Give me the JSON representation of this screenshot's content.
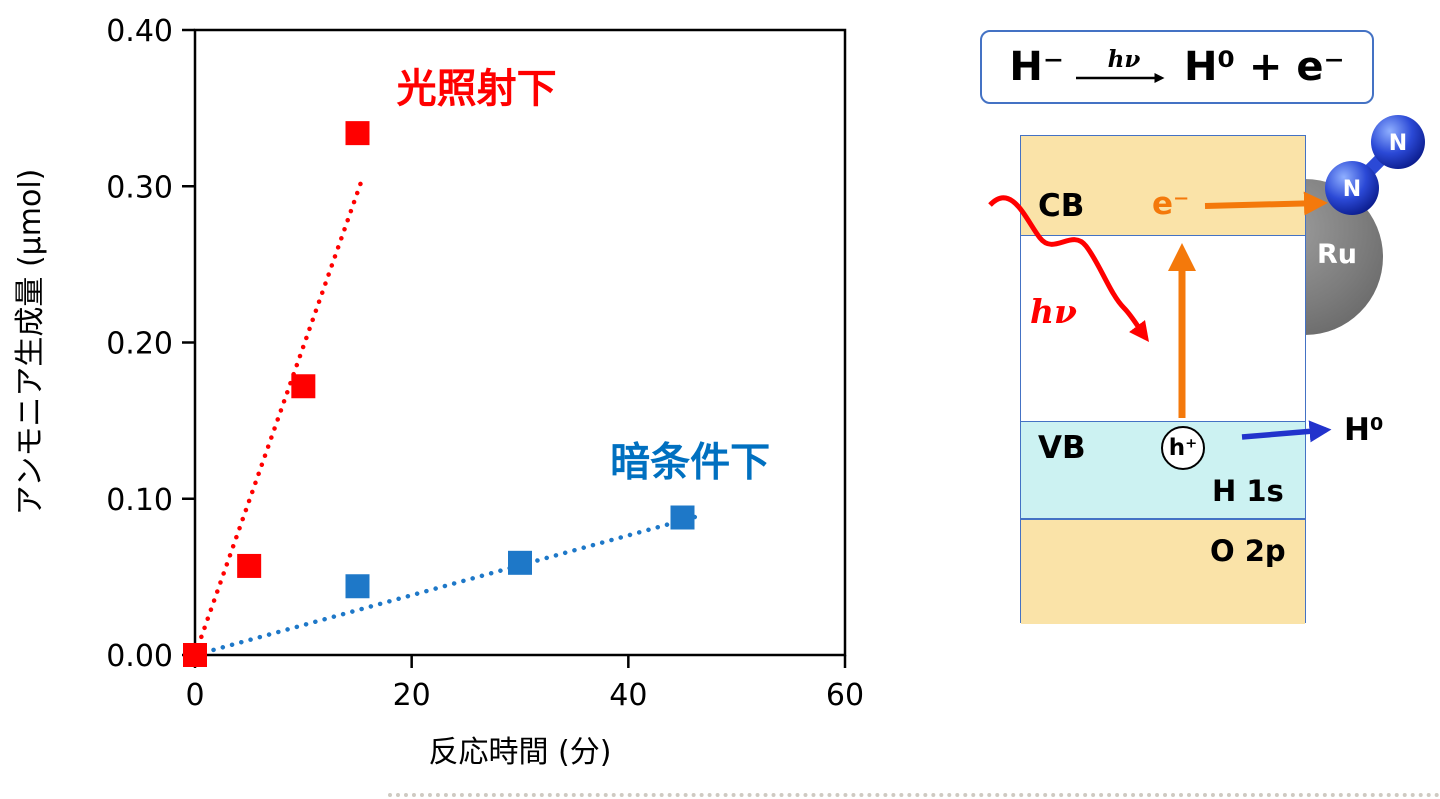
{
  "figure": {
    "background": "#FFFFFF"
  },
  "chart_data": {
    "type": "scatter",
    "title": "",
    "xlabel": "反応時間 (分)",
    "ylabel": "アンモニア生成量 (μmol)",
    "xlim": [
      0,
      60
    ],
    "ylim": [
      0,
      0.4
    ],
    "xticks": [
      "0",
      "20",
      "40",
      "60"
    ],
    "yticks": [
      "0.00",
      "0.10",
      "0.20",
      "0.30",
      "0.40"
    ],
    "grid": false,
    "legend_position": "inline-annotations",
    "series": [
      {
        "name": "暗条件下",
        "color": "#1E78C8",
        "marker": "square",
        "line_style": "dotted",
        "x": [
          0,
          15,
          30,
          45
        ],
        "y": [
          0,
          0.044,
          0.059,
          0.088
        ],
        "trend": {
          "x": [
            0,
            46.5
          ],
          "y": [
            0,
            0.089
          ]
        }
      },
      {
        "name": "光照射下",
        "color": "#FF0000",
        "marker": "square",
        "line_style": "dotted",
        "x": [
          0,
          5,
          10,
          15
        ],
        "y": [
          0,
          0.057,
          0.172,
          0.334
        ],
        "trend": {
          "x": [
            0,
            15.5
          ],
          "y": [
            0,
            0.306
          ]
        }
      }
    ],
    "annotations": [
      {
        "text": "光照射下",
        "x": 26,
        "y": 0.363,
        "color": "#FF0000"
      },
      {
        "text": "暗条件下",
        "x": 45.7,
        "y": 0.124,
        "color": "#0070C0"
      }
    ]
  },
  "equation": {
    "left": "H⁻",
    "hv": "hν",
    "right": "H⁰ + e⁻"
  },
  "diagram": {
    "cb_label": "CB",
    "e_label": "e⁻",
    "hv_label": "hν",
    "vb_label": "VB",
    "h_plus_label": "h⁺",
    "h1s_label": "H 1s",
    "o2p_label": "O 2p",
    "ru_label": "Ru",
    "n1_label": "N",
    "n2_label": "N",
    "h0_label": "H⁰",
    "colors": {
      "band_tan": "#FAE3A8",
      "band_cyan": "#CCF2F2",
      "border_blue": "#4472C4",
      "orange": "#F4790B",
      "red": "#FF0000",
      "electron_blue": "#2B49D6",
      "ru_gray": "#808080",
      "dark_series_text": "#0070C0"
    }
  }
}
